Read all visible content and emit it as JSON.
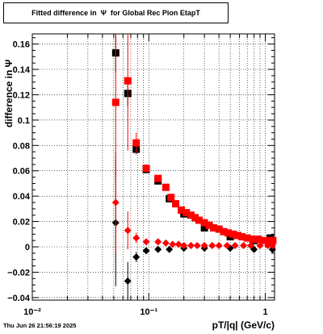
{
  "title": "Fitted difference in  Ψ  for Global Rec Pion EtapT",
  "footer": "Thu Jun 26 21:56:19 2025",
  "colors": {
    "black_series": "#000000",
    "red_series": "#ff0000",
    "axis": "#000000"
  },
  "chart_data": {
    "type": "scatter",
    "title": "Fitted difference in  Ψ  for Global Rec Pion EtapT",
    "xlabel": "pT/|q| (GeV/c)",
    "ylabel": "difference in Ψ",
    "xscale": "log",
    "xlim": [
      0.01,
      1.2
    ],
    "ylim": [
      -0.042,
      0.168
    ],
    "grid": true,
    "x_ticks": [
      0.01,
      0.1,
      1
    ],
    "x_tick_labels": [
      "10⁻²",
      "10⁻¹",
      "1"
    ],
    "y_ticks": [
      -0.04,
      -0.02,
      0,
      0.02,
      0.04,
      0.06,
      0.08,
      0.1,
      0.12,
      0.14,
      0.16
    ],
    "y_tick_labels": [
      "−0.04",
      "−0.02",
      "0",
      "0.02",
      "0.04",
      "0.06",
      "0.08",
      "0.1",
      "0.12",
      "0.14",
      "0.16"
    ],
    "series": [
      {
        "marker": "square",
        "color": "#000000",
        "x": [
          0.052,
          0.066,
          0.078,
          0.095,
          0.12,
          0.15,
          0.2,
          0.3,
          0.5,
          0.8,
          1.1
        ],
        "y": [
          0.153,
          0.121,
          0.077,
          0.061,
          0.052,
          0.038,
          0.026,
          0.015,
          0.008,
          0.005,
          0.007
        ],
        "yerr": [
          0.015,
          0.01,
          0.004,
          0.002,
          0.001,
          0.001,
          0.001,
          0.001,
          0.001,
          0.001,
          0.002
        ]
      },
      {
        "marker": "square",
        "color": "#ff0000",
        "x": [
          0.052,
          0.066,
          0.078,
          0.095,
          0.12,
          0.14,
          0.155,
          0.17,
          0.19,
          0.21,
          0.23,
          0.25,
          0.27,
          0.3,
          0.33,
          0.36,
          0.4,
          0.44,
          0.48,
          0.53,
          0.58,
          0.63,
          0.7,
          0.78,
          0.87,
          0.97,
          1.08,
          1.16
        ],
        "y": [
          0.114,
          0.131,
          0.082,
          0.062,
          0.054,
          0.047,
          0.039,
          0.034,
          0.029,
          0.027,
          0.025,
          0.023,
          0.021,
          0.019,
          0.017,
          0.015,
          0.014,
          0.012,
          0.011,
          0.01,
          0.009,
          0.008,
          0.007,
          0.006,
          0.006,
          0.005,
          0.005,
          0.005
        ],
        "yerr": [
          0.06,
          0.055,
          0.008,
          0.003,
          0.002,
          0.001,
          0.001,
          0.001,
          0.001,
          0.001,
          0.001,
          0.001,
          0.001,
          0.001,
          0.001,
          0.001,
          0.001,
          0.001,
          0.001,
          0.001,
          0.001,
          0.001,
          0.001,
          0.001,
          0.001,
          0.001,
          0.001,
          0.001
        ]
      },
      {
        "marker": "diamond",
        "color": "#000000",
        "x": [
          0.052,
          0.066,
          0.078,
          0.095,
          0.12,
          0.15,
          0.2,
          0.3,
          0.5,
          0.8,
          1.15
        ],
        "y": [
          0.019,
          -0.027,
          -0.008,
          -0.003,
          -0.002,
          -0.002,
          -0.001,
          -0.001,
          -0.001,
          -0.002,
          -0.002
        ],
        "yerr": [
          0.05,
          0.015,
          0.004,
          0.002,
          0.001,
          0.001,
          0.001,
          0.001,
          0.001,
          0.001,
          0.001
        ]
      },
      {
        "marker": "diamond",
        "color": "#ff0000",
        "x": [
          0.052,
          0.066,
          0.078,
          0.095,
          0.12,
          0.14,
          0.16,
          0.18,
          0.2,
          0.23,
          0.26,
          0.3,
          0.35,
          0.4,
          0.47,
          0.55,
          0.65,
          0.75,
          0.9,
          1.05,
          1.15
        ],
        "y": [
          0.035,
          0.013,
          0.007,
          0.004,
          0.004,
          0.003,
          0.002,
          0.002,
          0.001,
          0.001,
          0.001,
          0.001,
          0.001,
          0.001,
          0.001,
          0.001,
          0.001,
          0.001,
          0.001,
          0.001,
          0.001
        ],
        "yerr": [
          0.04,
          0.015,
          0.004,
          0.002,
          0.001,
          0.001,
          0.001,
          0.001,
          0.001,
          0.001,
          0.001,
          0.001,
          0.001,
          0.001,
          0.001,
          0.001,
          0.001,
          0.001,
          0.001,
          0.001,
          0.001
        ]
      }
    ]
  }
}
